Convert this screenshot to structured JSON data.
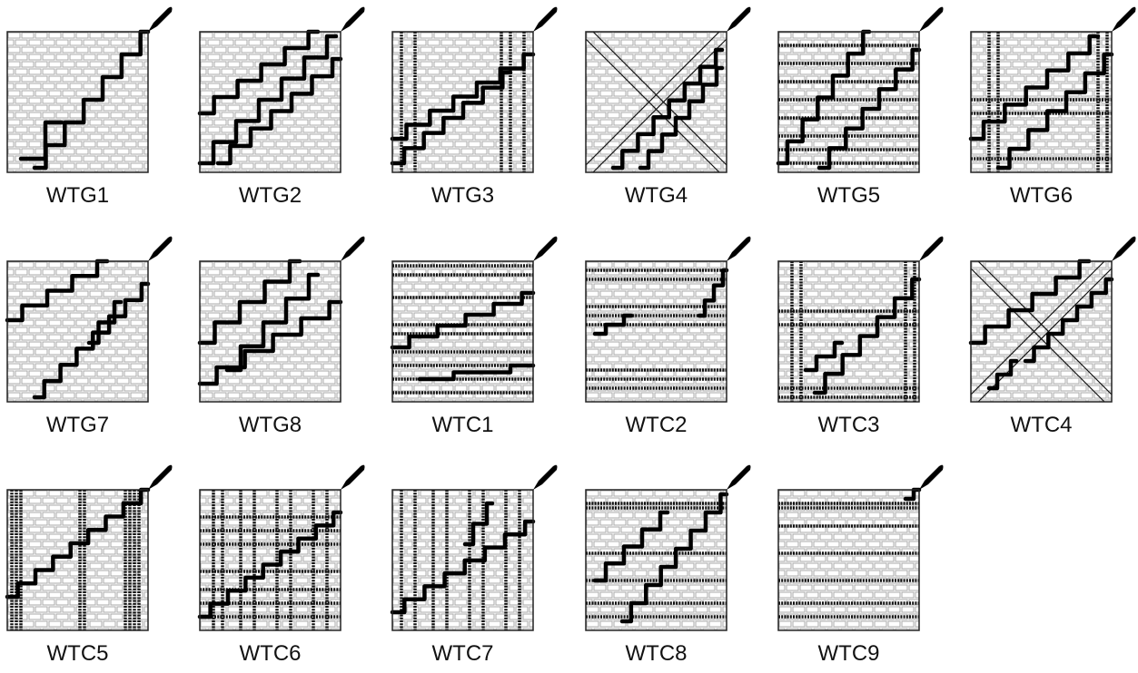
{
  "labels": [
    "WTG1",
    "WTG2",
    "WTG3",
    "WTG4",
    "WTG5",
    "WTG6",
    "WTG7",
    "WTG8",
    "WTC1",
    "WTC2",
    "WTC3",
    "WTC4",
    "WTC5",
    "WTC6",
    "WTC7",
    "WTC8",
    "WTC9"
  ]
}
